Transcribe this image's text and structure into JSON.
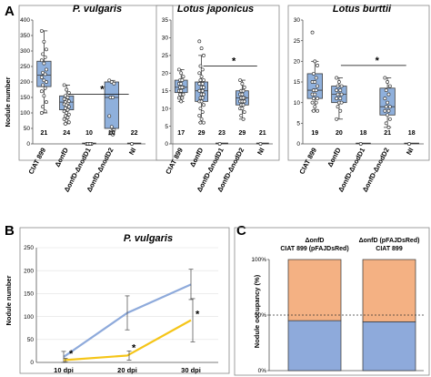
{
  "colors": {
    "box_fill": "#8fb0dc",
    "line_blue": "#8eaadb",
    "line_yellow": "#f5c518",
    "bar_orange": "#f4b183",
    "bar_blue": "#8eaadb"
  },
  "panel_a": {
    "letter": "A",
    "ylabel": "Nodule number",
    "categories": [
      "CIAT 899",
      "ΔonfD",
      "ΔonfD-ΔnodD1",
      "ΔonfD-ΔnodD2",
      "NI"
    ],
    "charts": [
      {
        "title": "P. vulgaris",
        "ylim": [
          0,
          400
        ],
        "yticks": [
          "0",
          "50",
          "100",
          "150",
          "200",
          "250",
          "300",
          "350",
          "400"
        ],
        "counts": [
          "21",
          "24",
          "10",
          "10",
          "22"
        ],
        "star": "*"
      },
      {
        "title": "Lotus japonicus",
        "ylim": [
          0,
          35
        ],
        "yticks": [
          "0",
          "5",
          "10",
          "15",
          "20",
          "25",
          "30",
          "35"
        ],
        "counts": [
          "17",
          "29",
          "23",
          "29",
          "21"
        ],
        "star": "*"
      },
      {
        "title": "Lotus burttii",
        "ylim": [
          0,
          30
        ],
        "yticks": [
          "0",
          "5",
          "10",
          "15",
          "20",
          "25",
          "30"
        ],
        "counts": [
          "19",
          "20",
          "18",
          "21",
          "18"
        ],
        "star": "*"
      }
    ]
  },
  "panel_b": {
    "letter": "B",
    "title": "P. vulgaris",
    "ylabel": "Nodule number",
    "yticks": [
      "0",
      "50",
      "100",
      "150",
      "200",
      "250"
    ],
    "xticks": [
      "10 dpi",
      "20 dpi",
      "30 dpi"
    ],
    "stars": [
      "*",
      "*",
      "*"
    ]
  },
  "panel_c": {
    "letter": "C",
    "ylabel": "Nodule occupancy (%)",
    "yticks": [
      "0%",
      "50%",
      "100%"
    ],
    "bar1_top": "ΔonfD",
    "bar1_bottom": "CIAT 899 (pFAJDsRed)",
    "bar2_top": "ΔonfD (pFAJDsRed)",
    "bar2_bottom": "CIAT 899"
  },
  "chart_data": [
    {
      "type": "box",
      "title": "P. vulgaris",
      "ylabel": "Nodule number",
      "ylim": [
        0,
        400
      ],
      "categories": [
        "CIAT 899",
        "ΔonfD",
        "ΔonfD-ΔnodD1",
        "ΔonfD-ΔnodD2",
        "NI"
      ],
      "n": [
        21,
        24,
        10,
        10,
        22
      ],
      "boxes": [
        {
          "min": 100,
          "q1": 185,
          "median": 222,
          "q3": 267,
          "max": 365
        },
        {
          "min": 65,
          "q1": 110,
          "median": 135,
          "q3": 155,
          "max": 190
        },
        {
          "min": 0,
          "q1": 0,
          "median": 0,
          "q3": 0,
          "max": 0
        },
        {
          "min": 30,
          "q1": 50,
          "median": 150,
          "q3": 200,
          "max": 205
        },
        {
          "min": 0,
          "q1": 0,
          "median": 0,
          "q3": 0,
          "max": 0
        }
      ],
      "points": [
        [
          365,
          330,
          305,
          290,
          280,
          270,
          260,
          240,
          230,
          225,
          215,
          205,
          200,
          190,
          180,
          170,
          155,
          135,
          120,
          105,
          100
        ],
        [
          190,
          175,
          165,
          155,
          150,
          145,
          140,
          138,
          135,
          130,
          128,
          125,
          120,
          115,
          110,
          105,
          100,
          95,
          90,
          85,
          80,
          75,
          70,
          65
        ],
        [
          0,
          0,
          0,
          0,
          0,
          0,
          0,
          0,
          0,
          0
        ],
        [
          205,
          200,
          195,
          150,
          150,
          90,
          55,
          45,
          35,
          30
        ],
        [
          0
        ]
      ],
      "significance": {
        "between": [
          "ΔonfD",
          "ΔonfD-ΔnodD2"
        ],
        "label": "*"
      }
    },
    {
      "type": "box",
      "title": "Lotus japonicus",
      "ylim": [
        0,
        35
      ],
      "categories": [
        "CIAT 899",
        "ΔonfD",
        "ΔonfD-ΔnodD1",
        "ΔonfD-ΔnodD2",
        "NI"
      ],
      "n": [
        17,
        29,
        23,
        29,
        21
      ],
      "boxes": [
        {
          "min": 12,
          "q1": 14.5,
          "median": 16,
          "q3": 18,
          "max": 21
        },
        {
          "min": 6,
          "q1": 12,
          "median": 15,
          "q3": 17.5,
          "max": 25
        },
        {
          "min": 0,
          "q1": 0,
          "median": 0,
          "q3": 0,
          "max": 0
        },
        {
          "min": 7,
          "q1": 11,
          "median": 13,
          "q3": 15,
          "max": 18
        },
        {
          "min": 0,
          "q1": 0,
          "median": 0,
          "q3": 0,
          "max": 0
        }
      ],
      "points": [
        [
          21,
          20,
          19,
          18,
          18,
          17,
          17,
          16,
          16,
          16,
          15,
          15,
          14,
          14,
          13,
          13,
          12
        ],
        [
          29,
          27,
          25,
          22,
          21,
          20,
          19,
          18,
          18,
          17,
          17,
          16,
          16,
          15,
          15,
          15,
          14,
          14,
          13,
          13,
          12,
          12,
          11,
          10,
          9,
          8,
          7,
          6,
          6
        ],
        [
          0
        ],
        [
          18,
          17,
          16,
          15,
          15,
          14,
          14,
          13,
          13,
          13,
          12,
          12,
          12,
          11,
          11,
          10,
          10,
          9,
          8,
          7
        ],
        [
          0
        ]
      ],
      "significance": {
        "between": [
          "ΔonfD",
          "ΔonfD-ΔnodD2"
        ],
        "label": "*"
      }
    },
    {
      "type": "box",
      "title": "Lotus burttii",
      "ylim": [
        0,
        30
      ],
      "categories": [
        "CIAT 899",
        "ΔonfD",
        "ΔonfD-ΔnodD1",
        "ΔonfD-ΔnodD2",
        "NI"
      ],
      "n": [
        19,
        20,
        18,
        21,
        18
      ],
      "boxes": [
        {
          "min": 8,
          "q1": 11,
          "median": 13,
          "q3": 17,
          "max": 20
        },
        {
          "min": 6,
          "q1": 10,
          "median": 12,
          "q3": 14,
          "max": 16
        },
        {
          "min": 0,
          "q1": 0,
          "median": 0,
          "q3": 0,
          "max": 0
        },
        {
          "min": 4,
          "q1": 7,
          "median": 9,
          "q3": 13.5,
          "max": 16
        },
        {
          "min": 0,
          "q1": 0,
          "median": 0,
          "q3": 0,
          "max": 0
        }
      ],
      "points": [
        [
          27,
          20,
          19,
          17,
          16,
          15,
          15,
          14,
          13,
          13,
          12,
          12,
          11,
          11,
          10,
          10,
          9,
          8,
          8
        ],
        [
          16,
          15,
          14,
          14,
          13,
          13,
          12,
          12,
          12,
          11,
          11,
          10,
          10,
          9,
          8,
          6
        ],
        [
          0
        ],
        [
          16,
          15,
          14,
          13,
          12,
          11,
          10,
          9,
          9,
          8,
          8,
          7,
          6,
          5,
          4
        ],
        [
          0
        ]
      ],
      "significance": {
        "between": [
          "ΔonfD",
          "ΔonfD-ΔnodD2"
        ],
        "label": "*"
      }
    },
    {
      "type": "line",
      "title": "P. vulgaris",
      "ylabel": "Nodule number",
      "ylim": [
        0,
        250
      ],
      "x": [
        "10 dpi",
        "20 dpi",
        "30 dpi"
      ],
      "series": [
        {
          "color": "#8eaadb",
          "values": [
            12,
            108,
            170
          ],
          "error": [
            12,
            37,
            33
          ]
        },
        {
          "color": "#f5c518",
          "values": [
            5,
            15,
            92
          ],
          "error": [
            4,
            10,
            47
          ]
        }
      ],
      "significance": [
        "*",
        "*",
        "*"
      ]
    },
    {
      "type": "bar",
      "stacked": true,
      "ylabel": "Nodule occupancy (%)",
      "ylim": [
        0,
        100
      ],
      "categories": [
        "ΔonfD / CIAT 899 (pFAJDsRed)",
        "ΔonfD (pFAJDsRed) / CIAT 899"
      ],
      "series": [
        {
          "color": "#8eaadb",
          "values": [
            45,
            44
          ]
        },
        {
          "color": "#f4b183",
          "values": [
            55,
            56
          ]
        }
      ],
      "reference_line": 50
    }
  ]
}
